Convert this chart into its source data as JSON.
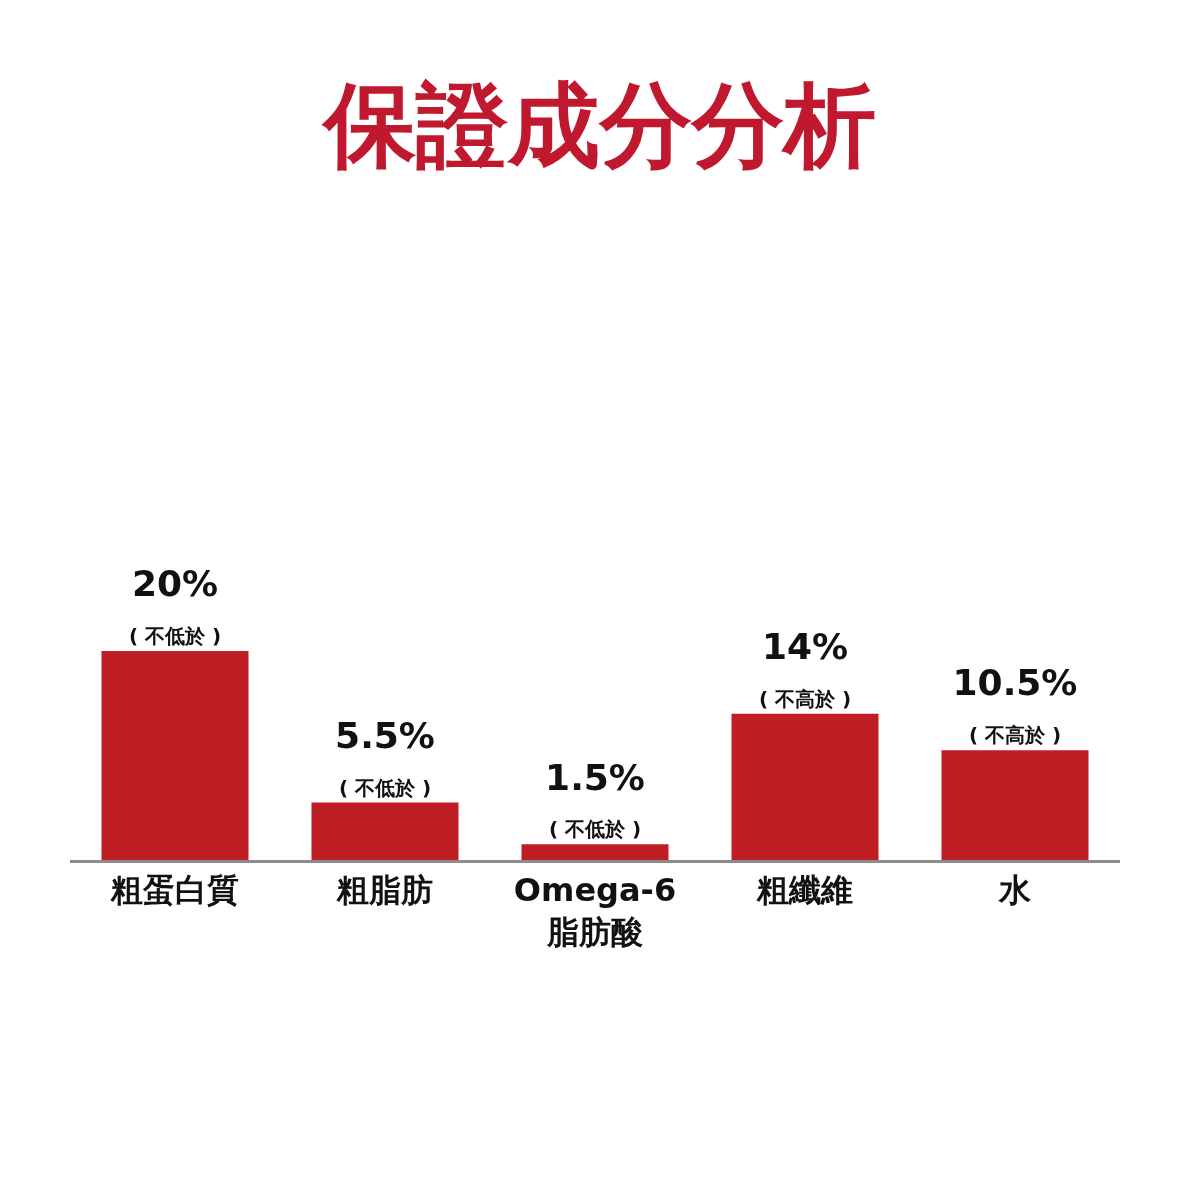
{
  "chart_data": {
    "type": "bar",
    "title": "保證成分分析",
    "categories": [
      "粗蛋白質",
      "粗脂肪",
      "Omega-6\n脂肪酸",
      "粗纖維",
      "水"
    ],
    "values": [
      20,
      5.5,
      1.5,
      14,
      10.5
    ],
    "value_labels": [
      "20%\n( 不低於 )",
      "5.5%\n( 不低於 )",
      "1.5%\n( 不低於 )",
      "14%\n( 不高於 )",
      "10.5%\n( 不高於 )"
    ],
    "color": "#be1e24"
  }
}
